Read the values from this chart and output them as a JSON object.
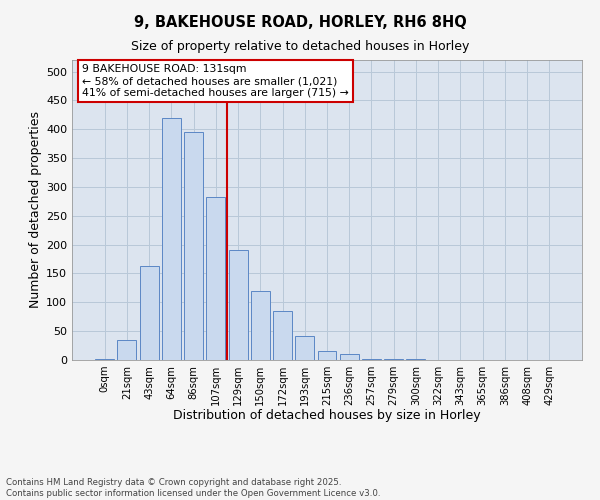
{
  "title1": "9, BAKEHOUSE ROAD, HORLEY, RH6 8HQ",
  "title2": "Size of property relative to detached houses in Horley",
  "xlabel": "Distribution of detached houses by size in Horley",
  "ylabel": "Number of detached properties",
  "bar_labels": [
    "0sqm",
    "21sqm",
    "43sqm",
    "64sqm",
    "86sqm",
    "107sqm",
    "129sqm",
    "150sqm",
    "172sqm",
    "193sqm",
    "215sqm",
    "236sqm",
    "257sqm",
    "279sqm",
    "300sqm",
    "322sqm",
    "343sqm",
    "365sqm",
    "386sqm",
    "408sqm",
    "429sqm"
  ],
  "bar_values": [
    2,
    34,
    163,
    420,
    395,
    283,
    191,
    120,
    85,
    42,
    16,
    11,
    2,
    1,
    1,
    0,
    0,
    0,
    0,
    0,
    0
  ],
  "bar_color": "#c9d9ee",
  "bar_edge_color": "#5b87c5",
  "vline_color": "#cc0000",
  "vline_pos": 5.5,
  "annotation_text": "9 BAKEHOUSE ROAD: 131sqm\n← 58% of detached houses are smaller (1,021)\n41% of semi-detached houses are larger (715) →",
  "annotation_box_color": "#cc0000",
  "ylim": [
    0,
    520
  ],
  "yticks": [
    0,
    50,
    100,
    150,
    200,
    250,
    300,
    350,
    400,
    450,
    500
  ],
  "grid_color": "#b8c8d8",
  "bg_color": "#dce4ef",
  "fig_bg_color": "#f5f5f5",
  "footer": "Contains HM Land Registry data © Crown copyright and database right 2025.\nContains public sector information licensed under the Open Government Licence v3.0."
}
